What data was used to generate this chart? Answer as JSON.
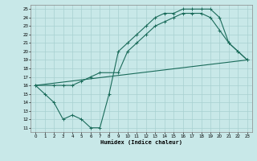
{
  "xlabel": "Humidex (Indice chaleur)",
  "bg_color": "#c8e8e8",
  "grid_color": "#a8d0d0",
  "line_color": "#1a6b5a",
  "xlim": [
    -0.5,
    23.5
  ],
  "ylim": [
    10.5,
    25.5
  ],
  "xticks": [
    0,
    1,
    2,
    3,
    4,
    5,
    6,
    7,
    8,
    9,
    10,
    11,
    12,
    13,
    14,
    15,
    16,
    17,
    18,
    19,
    20,
    21,
    22,
    23
  ],
  "yticks": [
    11,
    12,
    13,
    14,
    15,
    16,
    17,
    18,
    19,
    20,
    21,
    22,
    23,
    24,
    25
  ],
  "line1_x": [
    0,
    1,
    2,
    3,
    4,
    5,
    6,
    7,
    8,
    9,
    10,
    11,
    12,
    13,
    14,
    15,
    16,
    17,
    18,
    19,
    20,
    21,
    22,
    23
  ],
  "line1_y": [
    16,
    15,
    14,
    12,
    12.5,
    12,
    11,
    11,
    15,
    20,
    21,
    22,
    23,
    24,
    24.5,
    24.5,
    25,
    25,
    25,
    25,
    24,
    21,
    20,
    19
  ],
  "line2_x": [
    0,
    2,
    3,
    4,
    5,
    6,
    7,
    9,
    10,
    11,
    12,
    13,
    14,
    15,
    16,
    17,
    18,
    19,
    20,
    21,
    22,
    23
  ],
  "line2_y": [
    16,
    16,
    16,
    16,
    16.5,
    17,
    17.5,
    17.5,
    20,
    21,
    22,
    23,
    23.5,
    24,
    24.5,
    24.5,
    24.5,
    24,
    22.5,
    21,
    20,
    19
  ],
  "line3_x": [
    0,
    23
  ],
  "line3_y": [
    16,
    19
  ]
}
